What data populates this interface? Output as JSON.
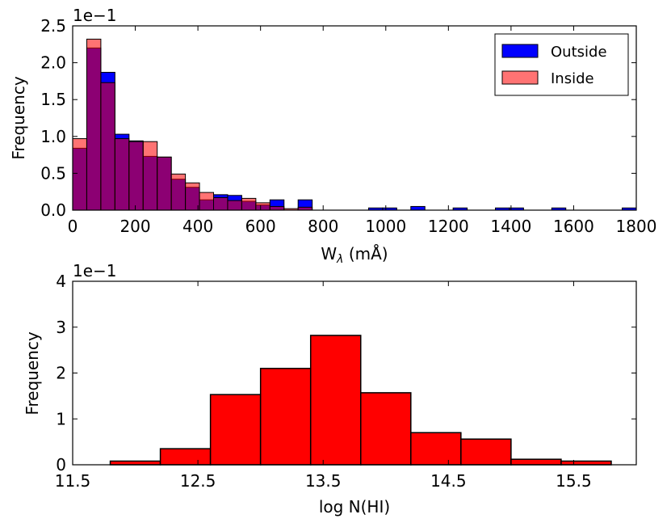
{
  "chart_data": [
    {
      "type": "bar",
      "subtype": "histogram",
      "xlabel": "W",
      "xlabel_subscript": "λ",
      "xlabel_unit": "(mÅ)",
      "ylabel": "Frequency",
      "offset_text": "1e−1",
      "xlim": [
        0,
        1800
      ],
      "ylim": [
        0,
        2.5
      ],
      "xticks": [
        "0",
        "200",
        "400",
        "600",
        "800",
        "1000",
        "1200",
        "1400",
        "1600",
        "1800"
      ],
      "xtick_values": [
        0,
        200,
        400,
        600,
        800,
        1000,
        1200,
        1400,
        1600,
        1800
      ],
      "yticks": [
        "0.0",
        "0.5",
        "1.0",
        "1.5",
        "2.0",
        "2.5"
      ],
      "ytick_values": [
        0,
        0.5,
        1.0,
        1.5,
        2.0,
        2.5
      ],
      "bin_width": 45,
      "bin_start": 0,
      "legend_position": "top-right",
      "series": [
        {
          "name": "Outside",
          "color": "#0000ff",
          "alpha": 1,
          "values": [
            0.84,
            2.2,
            1.87,
            1.03,
            0.94,
            0.73,
            0.72,
            0.42,
            0.31,
            0.14,
            0.21,
            0.2,
            0.12,
            0.07,
            0.14,
            0.0,
            0.14,
            0.0,
            0.0,
            0.0,
            0.0,
            0.03,
            0.03,
            0.0,
            0.05,
            0.0,
            0.0,
            0.03,
            0.0,
            0.0,
            0.03,
            0.03,
            0.0,
            0.0,
            0.03,
            0.0,
            0.0,
            0.0,
            0.0,
            0.03
          ]
        },
        {
          "name": "Inside",
          "color": "#ff0000",
          "alpha": 0.55,
          "values": [
            0.97,
            2.32,
            1.73,
            0.97,
            0.93,
            0.93,
            0.72,
            0.49,
            0.37,
            0.24,
            0.17,
            0.13,
            0.16,
            0.1,
            0.05,
            0.02,
            0.04,
            0.0,
            0.0,
            0.0,
            0.0,
            0.0,
            0.0,
            0.0,
            0.0,
            0.0,
            0.0,
            0.0,
            0.0,
            0.0,
            0.0,
            0.0,
            0.0,
            0.0,
            0.0,
            0.0,
            0.0,
            0.0,
            0.0,
            0.0
          ]
        }
      ]
    },
    {
      "type": "bar",
      "subtype": "histogram",
      "xlabel": "log N(HI)",
      "ylabel": "Frequency",
      "offset_text": "1e−1",
      "xlim": [
        11.5,
        16.0
      ],
      "ylim": [
        0,
        4
      ],
      "xticks": [
        "11.5",
        "12.5",
        "13.5",
        "14.5",
        "15.5"
      ],
      "xtick_values": [
        11.5,
        12.5,
        13.5,
        14.5,
        15.5
      ],
      "yticks": [
        "0",
        "1",
        "2",
        "3",
        "4"
      ],
      "ytick_values": [
        0,
        1,
        2,
        3,
        4
      ],
      "series": [
        {
          "name": "",
          "color": "#ff0000",
          "bin_edges": [
            11.8,
            12.2,
            12.6,
            13.0,
            13.4,
            13.8,
            14.2,
            14.6,
            15.0,
            15.4,
            15.8
          ],
          "values": [
            0.08,
            0.35,
            1.53,
            2.1,
            2.82,
            1.57,
            0.7,
            0.56,
            0.12,
            0.08
          ]
        }
      ]
    }
  ]
}
